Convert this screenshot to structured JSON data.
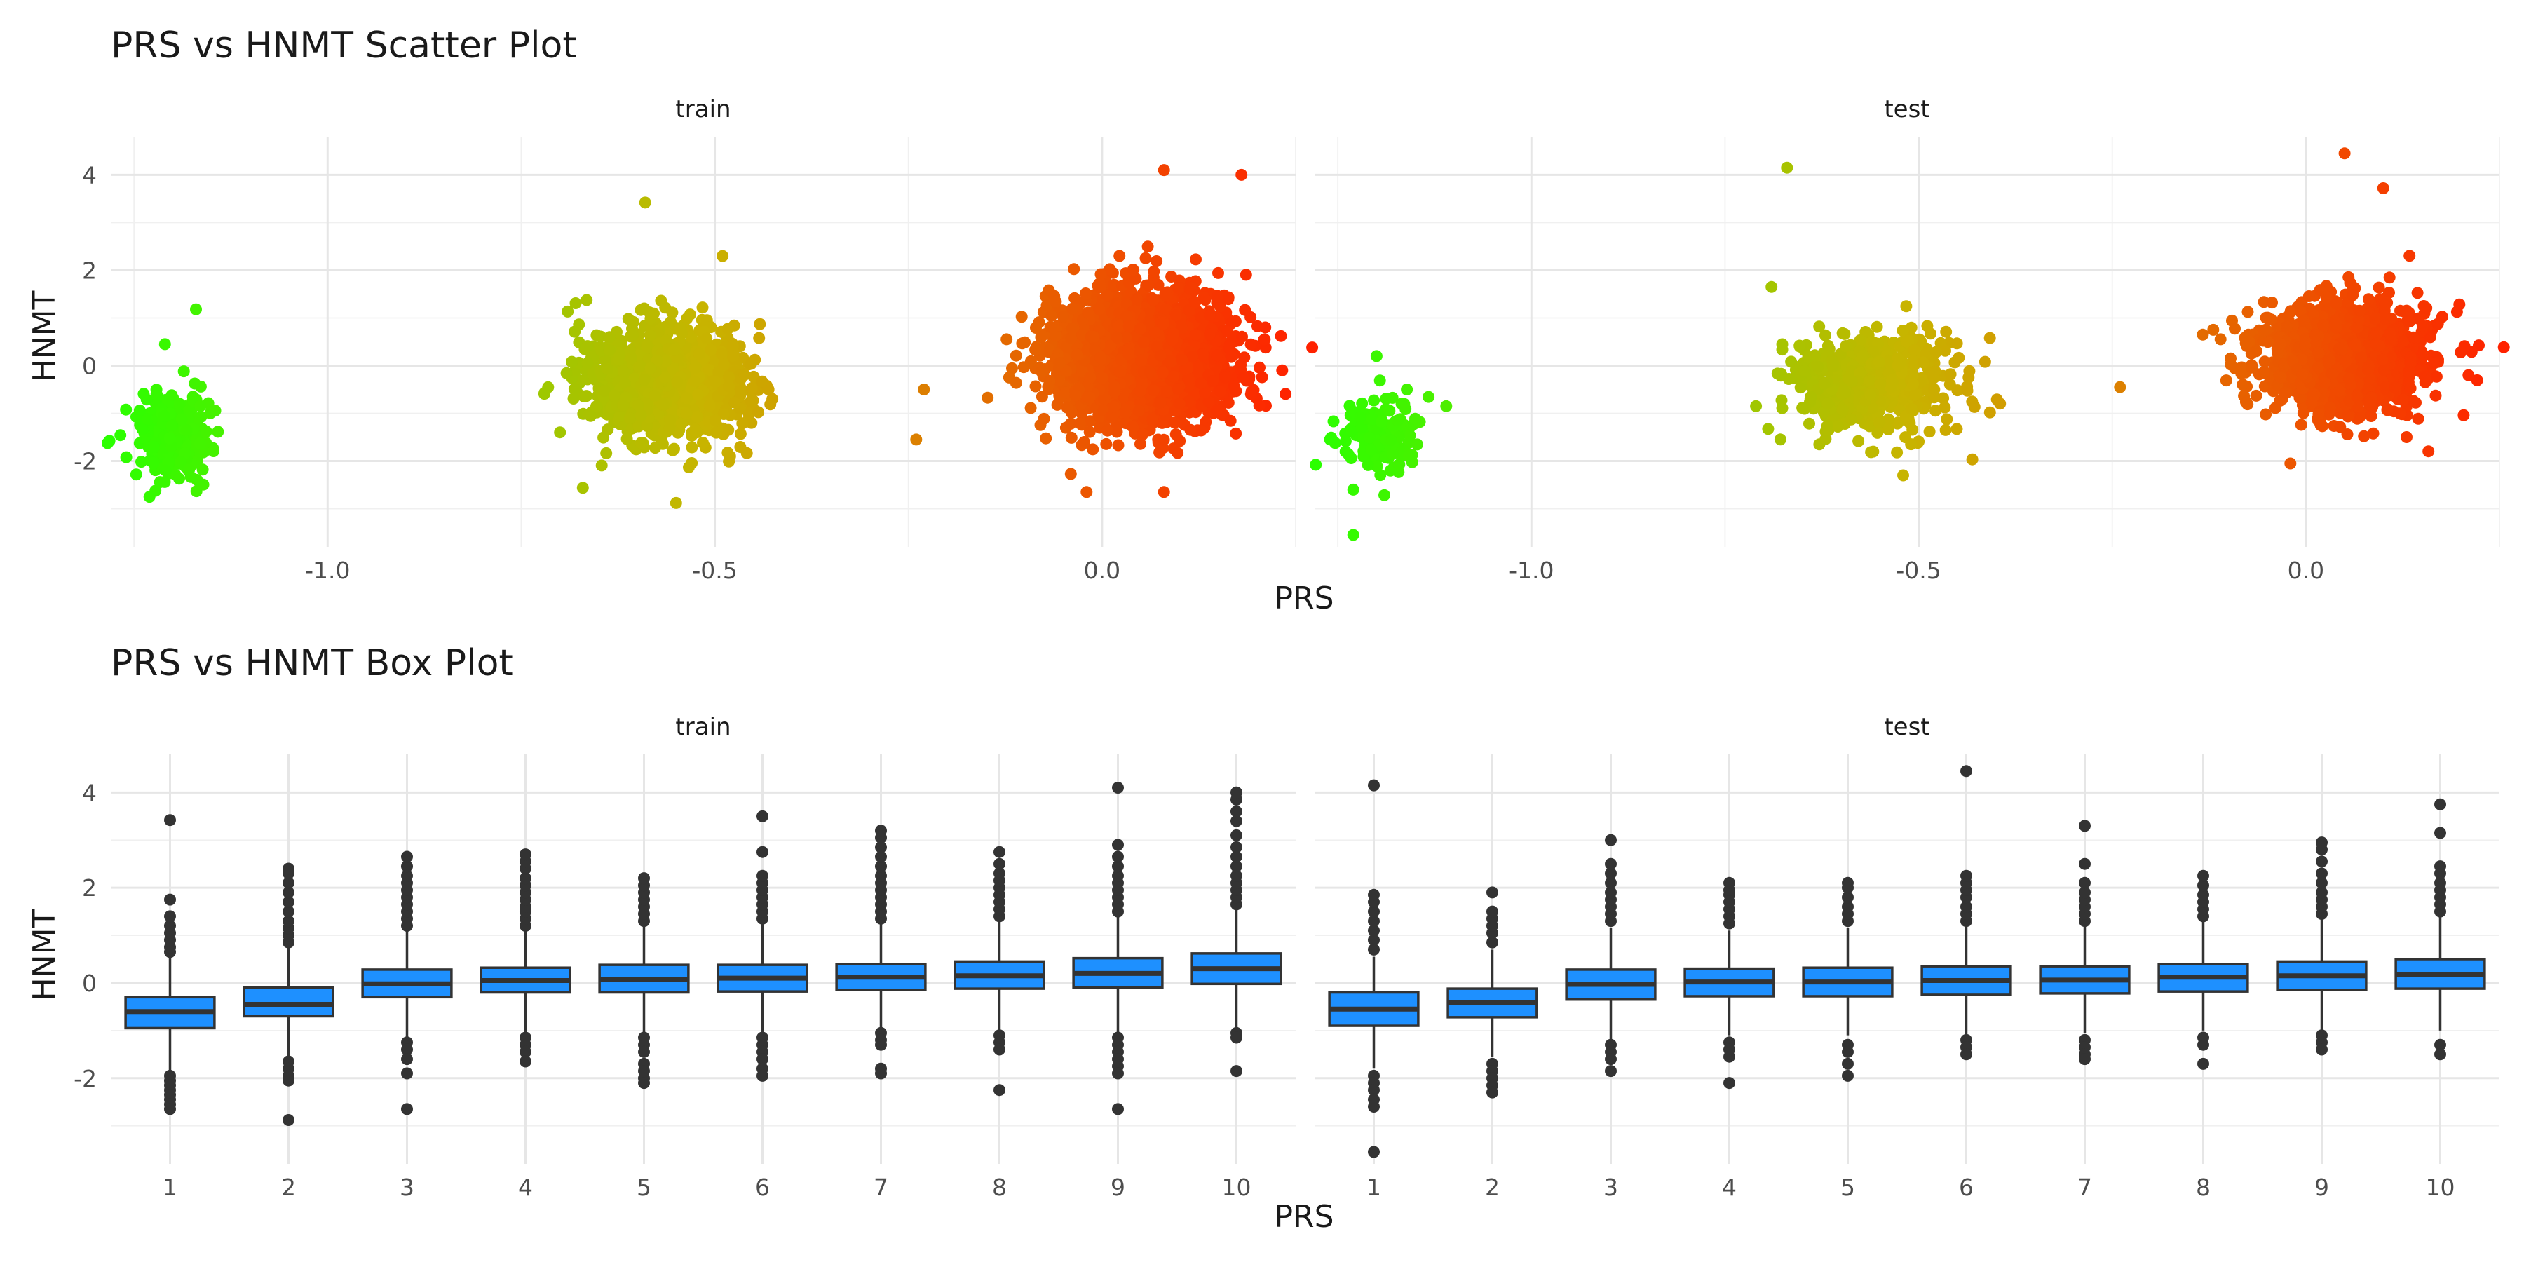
{
  "chart_data": [
    {
      "type": "scatter",
      "title": "PRS vs HNMT Scatter Plot",
      "xlabel": "PRS",
      "ylabel": "HNMT",
      "xlim": [
        -1.28,
        0.25
      ],
      "ylim": [
        -3.8,
        4.8
      ],
      "x_ticks": [
        -1.0,
        -0.5,
        0.0
      ],
      "x_tick_labels": [
        "-1.0",
        "-0.5",
        "0.0"
      ],
      "y_ticks": [
        -2,
        0,
        2,
        4
      ],
      "y_tick_labels": [
        "-2",
        "0",
        "2",
        "4"
      ],
      "color_scale": {
        "low": "#2bff00",
        "mid": "#c8b400",
        "high": "#ff2200"
      },
      "grid": true,
      "legend": "none",
      "facets": [
        {
          "name": "train",
          "clusters": [
            {
              "x_mean": -1.2,
              "x_sd": 0.025,
              "y_mean": -1.45,
              "y_sd": 0.42,
              "n": 260,
              "outliers": [
                [
                  -1.17,
                  1.18
                ],
                [
                  -1.21,
                  0.45
                ],
                [
                  -1.23,
                  -2.75
                ],
                [
                  -1.26,
                  -1.92
                ]
              ]
            },
            {
              "x_mean": -0.56,
              "x_sd": 0.05,
              "y_mean": -0.35,
              "y_sd": 0.58,
              "n": 1200,
              "outliers": [
                [
                  -0.59,
                  3.42
                ],
                [
                  -0.55,
                  -2.88
                ],
                [
                  -0.7,
                  -1.4
                ],
                [
                  -0.49,
                  2.3
                ]
              ]
            },
            {
              "x_mean": 0.05,
              "x_sd": 0.055,
              "y_mean": 0.2,
              "y_sd": 0.65,
              "n": 2600,
              "outliers": [
                [
                  0.08,
                  4.1
                ],
                [
                  0.18,
                  4.0
                ],
                [
                  -0.24,
                  -1.55
                ],
                [
                  -0.23,
                  -0.5
                ],
                [
                  -0.02,
                  -2.65
                ],
                [
                  0.08,
                  -2.65
                ],
                [
                  0.21,
                  0.55
                ]
              ]
            }
          ]
        },
        {
          "name": "test",
          "clusters": [
            {
              "x_mean": -1.2,
              "x_sd": 0.025,
              "y_mean": -1.45,
              "y_sd": 0.4,
              "n": 150,
              "outliers": [
                [
                  -1.23,
                  -3.55
                ],
                [
                  -1.23,
                  -2.6
                ],
                [
                  -1.11,
                  -0.85
                ],
                [
                  -1.26,
                  -1.55
                ],
                [
                  -1.2,
                  0.2
                ]
              ]
            },
            {
              "x_mean": -0.56,
              "x_sd": 0.05,
              "y_mean": -0.35,
              "y_sd": 0.52,
              "n": 550,
              "outliers": [
                [
                  -0.67,
                  4.15
                ],
                [
                  -0.69,
                  1.65
                ],
                [
                  -0.52,
                  -2.3
                ],
                [
                  -0.48,
                  -0.25
                ],
                [
                  -0.71,
                  -0.85
                ]
              ]
            },
            {
              "x_mean": 0.05,
              "x_sd": 0.055,
              "y_mean": 0.2,
              "y_sd": 0.6,
              "n": 1300,
              "outliers": [
                [
                  0.05,
                  4.45
                ],
                [
                  0.1,
                  3.72
                ],
                [
                  -0.24,
                  -0.45
                ],
                [
                  -0.02,
                  -2.05
                ],
                [
                  0.13,
                  -1.5
                ],
                [
                  0.21,
                  -0.2
                ],
                [
                  0.2,
                  0.28
                ]
              ]
            }
          ]
        }
      ]
    },
    {
      "type": "box",
      "title": "PRS vs HNMT Box Plot",
      "xlabel": "PRS",
      "ylabel": "HNMT",
      "ylim": [
        -3.8,
        4.8
      ],
      "categories": [
        "1",
        "2",
        "3",
        "4",
        "5",
        "6",
        "7",
        "8",
        "9",
        "10"
      ],
      "y_ticks": [
        -2,
        0,
        2,
        4
      ],
      "y_tick_labels": [
        "-2",
        "0",
        "2",
        "4"
      ],
      "box_color": "#1e90ff",
      "grid": true,
      "facets": [
        {
          "name": "train",
          "boxes": [
            {
              "q1": -0.95,
              "median": -0.6,
              "q3": -0.3,
              "whisker_low": -1.85,
              "whisker_high": 0.55,
              "outliers_low": [
                -1.95,
                -2.05,
                -2.15,
                -2.25,
                -2.35,
                -2.45,
                -2.55,
                -2.65
              ],
              "outliers_high": [
                0.65,
                0.75,
                0.9,
                1.05,
                1.2,
                1.4,
                1.75,
                3.42
              ]
            },
            {
              "q1": -0.7,
              "median": -0.45,
              "q3": -0.1,
              "whisker_low": -1.55,
              "whisker_high": 0.75,
              "outliers_low": [
                -1.65,
                -1.8,
                -1.95,
                -2.05,
                -2.88
              ],
              "outliers_high": [
                0.85,
                1.0,
                1.15,
                1.3,
                1.5,
                1.7,
                1.9,
                2.1,
                2.3,
                2.4
              ]
            },
            {
              "q1": -0.3,
              "median": -0.02,
              "q3": 0.28,
              "whisker_low": -1.15,
              "whisker_high": 1.1,
              "outliers_low": [
                -1.25,
                -1.4,
                -1.6,
                -1.9,
                -2.65
              ],
              "outliers_high": [
                1.2,
                1.35,
                1.5,
                1.65,
                1.8,
                1.95,
                2.1,
                2.25,
                2.45,
                2.65
              ]
            },
            {
              "q1": -0.2,
              "median": 0.05,
              "q3": 0.32,
              "whisker_low": -1.05,
              "whisker_high": 1.1,
              "outliers_low": [
                -1.15,
                -1.3,
                -1.45,
                -1.65
              ],
              "outliers_high": [
                1.2,
                1.35,
                1.5,
                1.6,
                1.75,
                1.9,
                2.05,
                2.2,
                2.4,
                2.55,
                2.7
              ]
            },
            {
              "q1": -0.2,
              "median": 0.08,
              "q3": 0.38,
              "whisker_low": -1.05,
              "whisker_high": 1.2,
              "outliers_low": [
                -1.15,
                -1.3,
                -1.45,
                -1.7,
                -1.85,
                -2.0,
                -2.1
              ],
              "outliers_high": [
                1.3,
                1.45,
                1.6,
                1.75,
                1.9,
                2.05,
                2.2
              ]
            },
            {
              "q1": -0.18,
              "median": 0.1,
              "q3": 0.38,
              "whisker_low": -1.05,
              "whisker_high": 1.25,
              "outliers_low": [
                -1.15,
                -1.3,
                -1.45,
                -1.6,
                -1.8,
                -1.95
              ],
              "outliers_high": [
                1.35,
                1.5,
                1.65,
                1.8,
                1.95,
                2.1,
                2.25,
                2.75,
                3.5
              ]
            },
            {
              "q1": -0.15,
              "median": 0.12,
              "q3": 0.4,
              "whisker_low": -0.95,
              "whisker_high": 1.25,
              "outliers_low": [
                -1.05,
                -1.2,
                -1.3,
                -1.8,
                -1.9
              ],
              "outliers_high": [
                1.35,
                1.5,
                1.65,
                1.8,
                1.95,
                2.1,
                2.25,
                2.45,
                2.65,
                2.85,
                3.05,
                3.2
              ]
            },
            {
              "q1": -0.12,
              "median": 0.15,
              "q3": 0.45,
              "whisker_low": -1.0,
              "whisker_high": 1.3,
              "outliers_low": [
                -1.1,
                -1.25,
                -1.4,
                -2.25
              ],
              "outliers_high": [
                1.4,
                1.55,
                1.7,
                1.85,
                2.0,
                2.15,
                2.3,
                2.5,
                2.75
              ]
            },
            {
              "q1": -0.1,
              "median": 0.2,
              "q3": 0.52,
              "whisker_low": -1.05,
              "whisker_high": 1.4,
              "outliers_low": [
                -1.15,
                -1.3,
                -1.45,
                -1.6,
                -1.75,
                -1.9,
                -2.65
              ],
              "outliers_high": [
                1.5,
                1.65,
                1.8,
                1.95,
                2.1,
                2.25,
                2.45,
                2.65,
                2.9,
                4.1
              ]
            },
            {
              "q1": -0.02,
              "median": 0.3,
              "q3": 0.62,
              "whisker_low": -0.95,
              "whisker_high": 1.55,
              "outliers_low": [
                -1.05,
                -1.15,
                -1.85
              ],
              "outliers_high": [
                1.65,
                1.8,
                1.95,
                2.1,
                2.25,
                2.45,
                2.65,
                2.85,
                3.1,
                3.4,
                3.6,
                3.85,
                4.0
              ]
            }
          ]
        },
        {
          "name": "test",
          "boxes": [
            {
              "q1": -0.9,
              "median": -0.55,
              "q3": -0.2,
              "whisker_low": -1.8,
              "whisker_high": 0.55,
              "outliers_low": [
                -1.95,
                -2.1,
                -2.25,
                -2.45,
                -2.6,
                -3.55
              ],
              "outliers_high": [
                0.7,
                0.9,
                1.1,
                1.3,
                1.5,
                1.7,
                1.85,
                4.15
              ]
            },
            {
              "q1": -0.72,
              "median": -0.42,
              "q3": -0.12,
              "whisker_low": -1.55,
              "whisker_high": 0.7,
              "outliers_low": [
                -1.7,
                -1.85,
                -2.0,
                -2.15,
                -2.3
              ],
              "outliers_high": [
                0.85,
                1.05,
                1.2,
                1.35,
                1.5,
                1.9
              ]
            },
            {
              "q1": -0.35,
              "median": -0.03,
              "q3": 0.28,
              "whisker_low": -1.2,
              "whisker_high": 1.15,
              "outliers_low": [
                -1.3,
                -1.45,
                -1.6,
                -1.85
              ],
              "outliers_high": [
                1.3,
                1.45,
                1.6,
                1.75,
                1.9,
                2.1,
                2.3,
                2.5,
                3.0
              ]
            },
            {
              "q1": -0.28,
              "median": 0.02,
              "q3": 0.3,
              "whisker_low": -1.1,
              "whisker_high": 1.1,
              "outliers_low": [
                -1.25,
                -1.4,
                -1.55,
                -2.1
              ],
              "outliers_high": [
                1.25,
                1.4,
                1.55,
                1.7,
                1.85,
                1.95,
                2.1
              ]
            },
            {
              "q1": -0.28,
              "median": 0.02,
              "q3": 0.32,
              "whisker_low": -1.1,
              "whisker_high": 1.15,
              "outliers_low": [
                -1.3,
                -1.45,
                -1.7,
                -1.95
              ],
              "outliers_high": [
                1.3,
                1.45,
                1.6,
                1.8,
                2.0,
                2.1
              ]
            },
            {
              "q1": -0.25,
              "median": 0.05,
              "q3": 0.35,
              "whisker_low": -1.1,
              "whisker_high": 1.2,
              "outliers_low": [
                -1.2,
                -1.35,
                -1.5
              ],
              "outliers_high": [
                1.3,
                1.45,
                1.6,
                1.8,
                1.95,
                2.1,
                2.25,
                4.45
              ]
            },
            {
              "q1": -0.22,
              "median": 0.06,
              "q3": 0.35,
              "whisker_low": -1.05,
              "whisker_high": 1.2,
              "outliers_low": [
                -1.2,
                -1.35,
                -1.5,
                -1.6
              ],
              "outliers_high": [
                1.3,
                1.45,
                1.6,
                1.75,
                1.9,
                2.1,
                2.5,
                3.3
              ]
            },
            {
              "q1": -0.18,
              "median": 0.12,
              "q3": 0.4,
              "whisker_low": -1.0,
              "whisker_high": 1.3,
              "outliers_low": [
                -1.15,
                -1.3,
                -1.7
              ],
              "outliers_high": [
                1.4,
                1.55,
                1.7,
                1.85,
                2.05,
                2.25
              ]
            },
            {
              "q1": -0.15,
              "median": 0.15,
              "q3": 0.45,
              "whisker_low": -1.0,
              "whisker_high": 1.35,
              "outliers_low": [
                -1.1,
                -1.25,
                -1.4
              ],
              "outliers_high": [
                1.45,
                1.6,
                1.75,
                1.9,
                2.1,
                2.3,
                2.55,
                2.8,
                2.95
              ]
            },
            {
              "q1": -0.12,
              "median": 0.18,
              "q3": 0.5,
              "whisker_low": -1.0,
              "whisker_high": 1.4,
              "outliers_low": [
                -1.3,
                -1.5
              ],
              "outliers_high": [
                1.5,
                1.65,
                1.8,
                1.95,
                2.1,
                2.3,
                2.45,
                3.15,
                3.75
              ]
            }
          ]
        }
      ]
    }
  ]
}
